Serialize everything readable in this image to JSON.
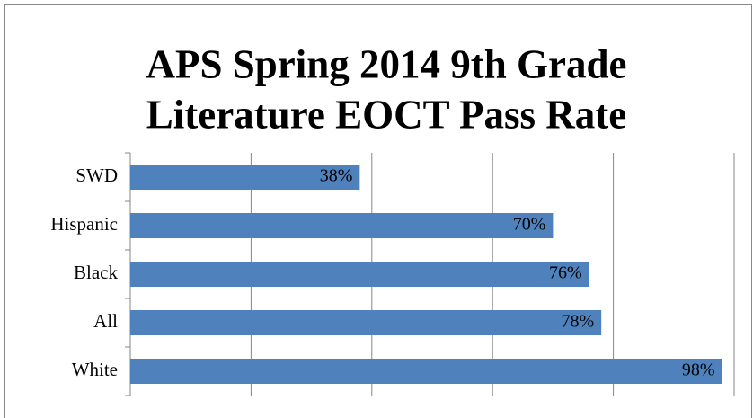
{
  "chart_data": {
    "type": "barh",
    "title": [
      "APS Spring 2014 9th Grade",
      "Literature EOCT Pass Rate"
    ],
    "categories": [
      "SWD",
      "Hispanic",
      "Black",
      "All",
      "White"
    ],
    "values": [
      38,
      70,
      76,
      78,
      98
    ],
    "value_labels": [
      "38%",
      "70%",
      "76%",
      "78%",
      "98%"
    ],
    "color": "#4f81bd",
    "xlim": [
      0,
      100
    ],
    "xticks": [
      0,
      20,
      40,
      60,
      80,
      100
    ],
    "grid": true
  }
}
